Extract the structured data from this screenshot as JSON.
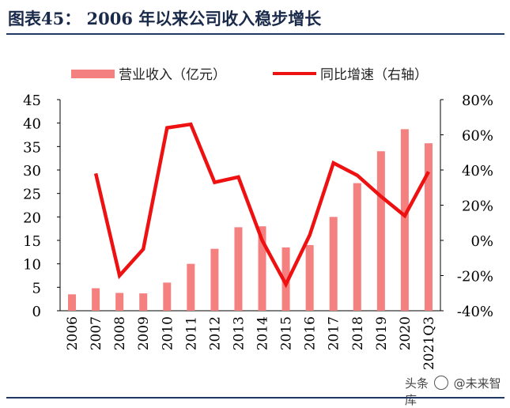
{
  "figure": {
    "label": "图表45：",
    "title": "2006 年以来公司收入稳步增长"
  },
  "watermark": {
    "prefix": "头条",
    "name": "@未来智库"
  },
  "colors": {
    "bar": "#f58080",
    "line": "#ee1111",
    "title": "#1a2a4a",
    "rule": "#1f3864"
  },
  "chart_data": {
    "type": "bar+line",
    "categories": [
      "2006",
      "2007",
      "2008",
      "2009",
      "2010",
      "2011",
      "2012",
      "2013",
      "2014",
      "2015",
      "2016",
      "2017",
      "2018",
      "2019",
      "2020",
      "2021Q3"
    ],
    "series": [
      {
        "name": "营业收入（亿元）",
        "type": "bar",
        "axis": "left",
        "values": [
          3.5,
          4.8,
          3.8,
          3.7,
          6.0,
          10.0,
          13.2,
          17.8,
          18.0,
          13.5,
          14.0,
          20.0,
          27.2,
          34.0,
          38.7,
          35.7
        ]
      },
      {
        "name": "同比增速（右轴）",
        "type": "line",
        "axis": "right",
        "values": [
          null,
          38,
          -20,
          -5,
          64,
          66,
          33,
          36,
          0,
          -25,
          3,
          44,
          37,
          25,
          14,
          39
        ]
      }
    ],
    "left_axis": {
      "min": 0,
      "max": 45,
      "ticks": [
        "0",
        "5",
        "10",
        "15",
        "20",
        "25",
        "30",
        "35",
        "40",
        "45"
      ]
    },
    "right_axis": {
      "min": -40,
      "max": 80,
      "ticks": [
        "-40%",
        "-20%",
        "0%",
        "20%",
        "40%",
        "60%",
        "80%"
      ]
    },
    "grid": false,
    "legend_position": "top"
  }
}
